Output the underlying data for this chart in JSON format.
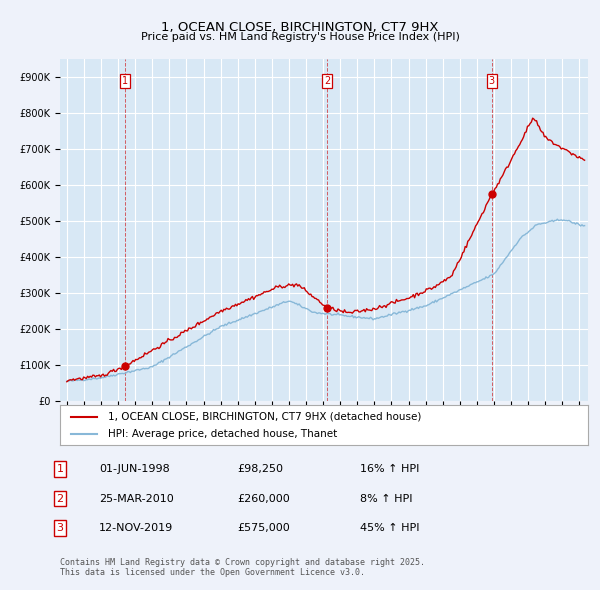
{
  "title": "1, OCEAN CLOSE, BIRCHINGTON, CT7 9HX",
  "subtitle": "Price paid vs. HM Land Registry's House Price Index (HPI)",
  "bg_color": "#eef2fa",
  "plot_bg_color": "#d8e8f5",
  "grid_color": "#ffffff",
  "red_color": "#cc0000",
  "blue_color": "#88b8d8",
  "sale_dates": [
    1998.42,
    2010.23,
    2019.87
  ],
  "sale_labels": [
    "1",
    "2",
    "3"
  ],
  "sale_prices": [
    98250,
    260000,
    575000
  ],
  "sale_info": [
    [
      "1",
      "01-JUN-1998",
      "£98,250",
      "16% ↑ HPI"
    ],
    [
      "2",
      "25-MAR-2010",
      "£260,000",
      "8% ↑ HPI"
    ],
    [
      "3",
      "12-NOV-2019",
      "£575,000",
      "45% ↑ HPI"
    ]
  ],
  "ylabel_ticks": [
    0,
    100000,
    200000,
    300000,
    400000,
    500000,
    600000,
    700000,
    800000,
    900000
  ],
  "ylabel_labels": [
    "£0",
    "£100K",
    "£200K",
    "£300K",
    "£400K",
    "£500K",
    "£600K",
    "£700K",
    "£800K",
    "£900K"
  ],
  "xlim_start": 1994.6,
  "xlim_end": 2025.5,
  "ylim": [
    0,
    950000
  ],
  "legend_red": "1, OCEAN CLOSE, BIRCHINGTON, CT7 9HX (detached house)",
  "legend_blue": "HPI: Average price, detached house, Thanet",
  "footer": "Contains HM Land Registry data © Crown copyright and database right 2025.\nThis data is licensed under the Open Government Licence v3.0."
}
